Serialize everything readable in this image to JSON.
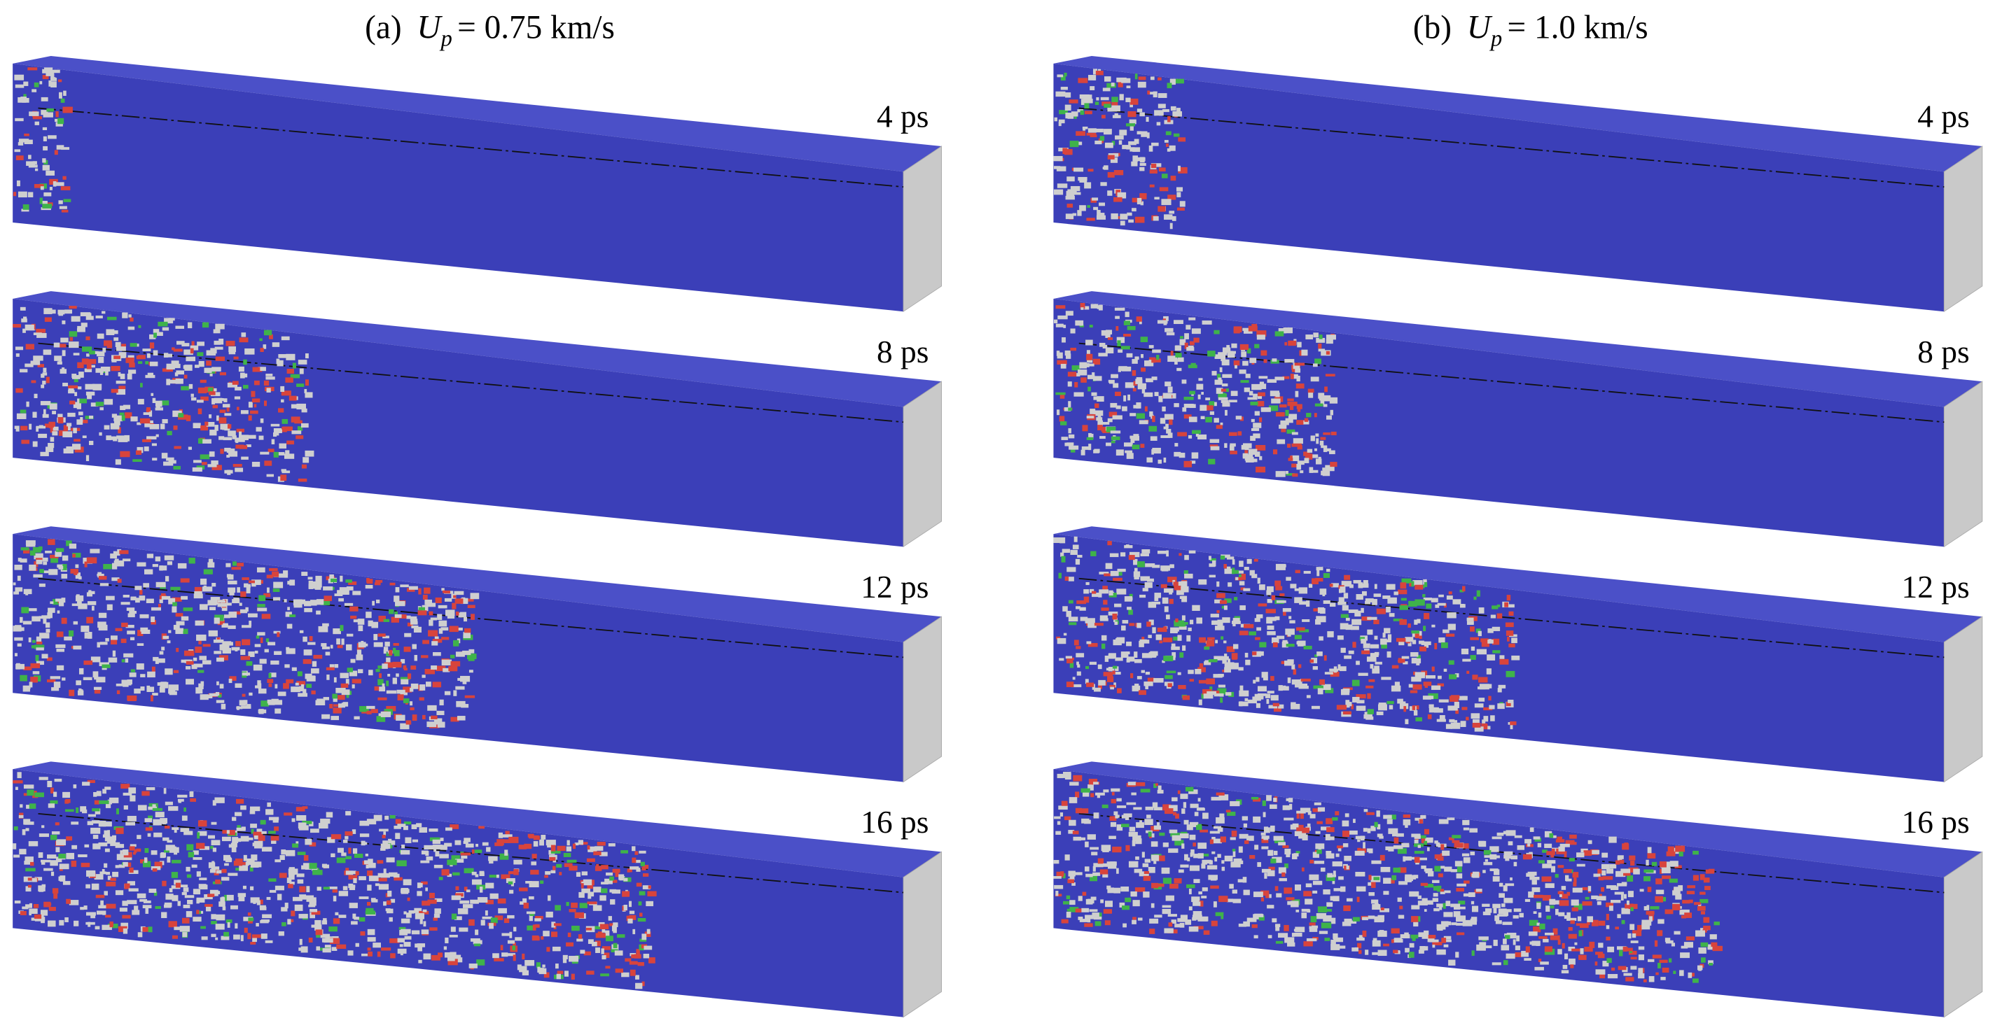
{
  "panels": [
    {
      "label": "(a)",
      "symbol": "U",
      "subscript": "p",
      "value": "= 0.75 km/s",
      "times": [
        "4 ps",
        "8 ps",
        "12 ps",
        "16 ps"
      ]
    },
    {
      "label": "(b)",
      "symbol": "U",
      "subscript": "p",
      "value": "= 1.0 km/s",
      "times": [
        "4 ps",
        "8 ps",
        "12 ps",
        "16 ps"
      ]
    }
  ]
}
